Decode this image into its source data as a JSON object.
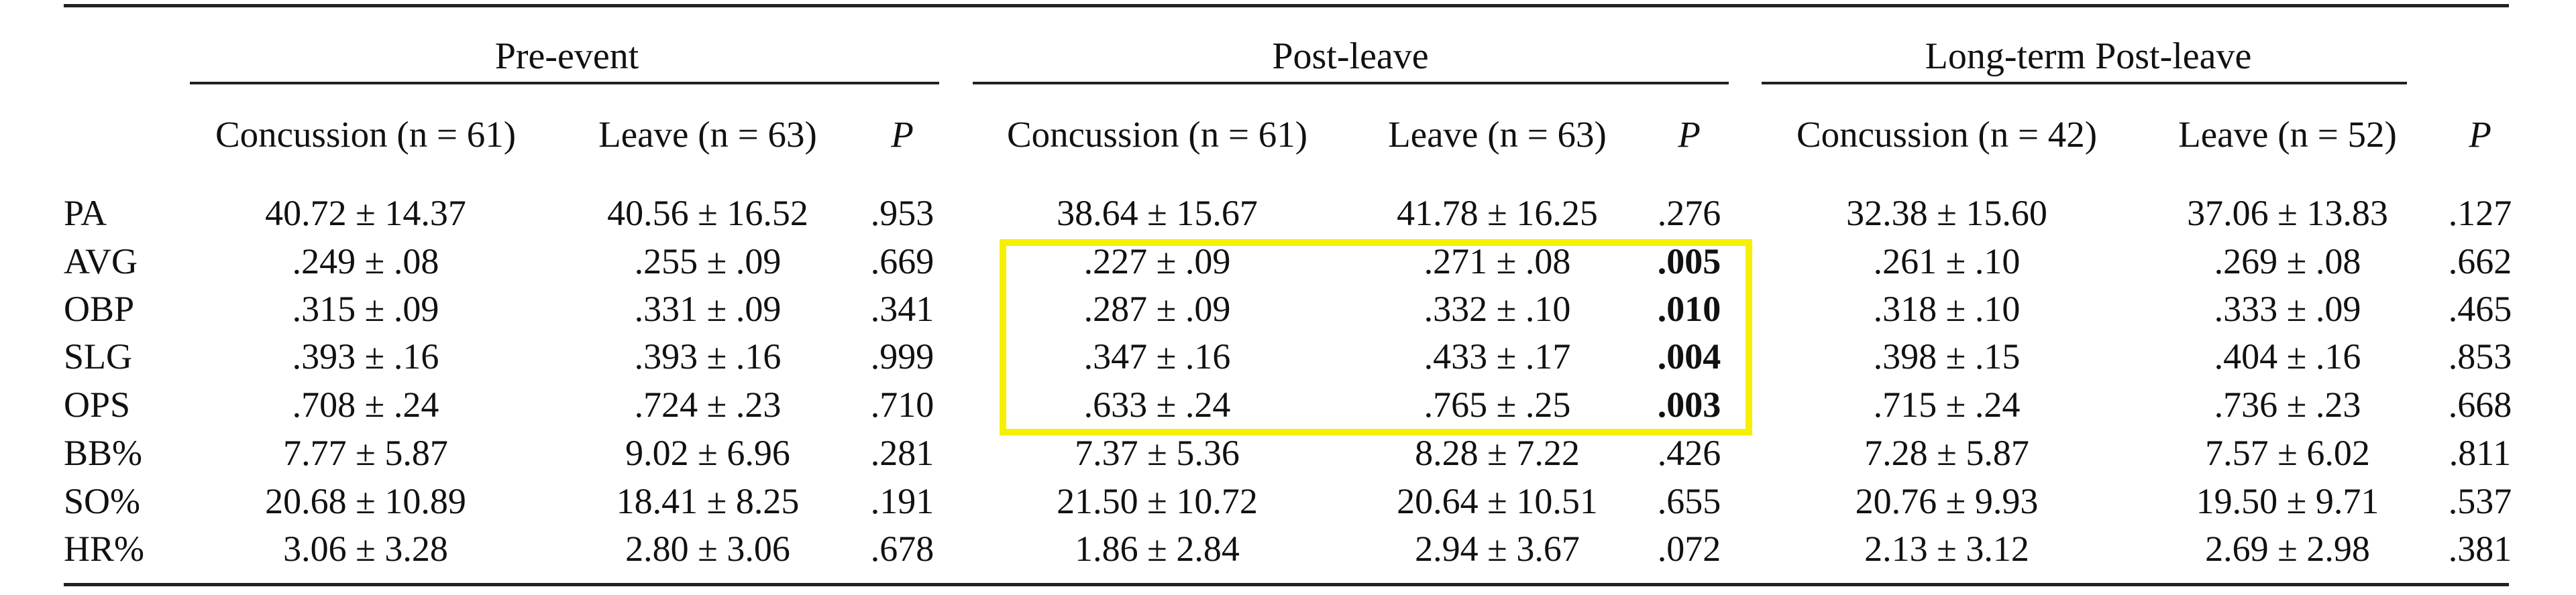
{
  "groups": [
    {
      "label": "Pre-event"
    },
    {
      "label": "Post-leave"
    },
    {
      "label": "Long-term Post-leave"
    }
  ],
  "column_headers": [
    "Concussion (n = 61)",
    "Leave (n = 63)",
    "P",
    "Concussion (n = 61)",
    "Leave (n = 63)",
    "P",
    "Concussion (n = 42)",
    "Leave (n = 52)",
    "P"
  ],
  "rows": [
    {
      "label": "PA",
      "values": [
        "40.72 ± 14.37",
        "40.56 ± 16.52",
        ".953",
        "38.64 ± 15.67",
        "41.78 ± 16.25",
        ".276",
        "32.38 ± 15.60",
        "37.06 ± 13.83",
        ".127"
      ]
    },
    {
      "label": "AVG",
      "values": [
        ".249 ± .08",
        ".255 ± .09",
        ".669",
        ".227 ± .09",
        ".271 ± .08",
        ".005",
        ".261 ± .10",
        ".269 ± .08",
        ".662"
      ]
    },
    {
      "label": "OBP",
      "values": [
        ".315 ± .09",
        ".331 ± .09",
        ".341",
        ".287 ± .09",
        ".332 ± .10",
        ".010",
        ".318 ± .10",
        ".333 ± .09",
        ".465"
      ]
    },
    {
      "label": "SLG",
      "values": [
        ".393 ± .16",
        ".393 ± .16",
        ".999",
        ".347 ± .16",
        ".433 ± .17",
        ".004",
        ".398 ± .15",
        ".404 ± .16",
        ".853"
      ]
    },
    {
      "label": "OPS",
      "values": [
        ".708 ± .24",
        ".724 ± .23",
        ".710",
        ".633 ± .24",
        ".765 ± .25",
        ".003",
        ".715 ± .24",
        ".736 ± .23",
        ".668"
      ]
    },
    {
      "label": "BB%",
      "values": [
        "7.77 ± 5.87",
        "9.02 ± 6.96",
        ".281",
        "7.37 ± 5.36",
        "8.28 ± 7.22",
        ".426",
        "7.28 ± 5.87",
        "7.57 ± 6.02",
        ".811"
      ]
    },
    {
      "label": "SO%",
      "values": [
        "20.68 ± 10.89",
        "18.41 ± 8.25",
        ".191",
        "21.50 ± 10.72",
        "20.64 ± 10.51",
        ".655",
        "20.76 ± 9.93",
        "19.50 ± 9.71",
        ".537"
      ]
    },
    {
      "label": "HR%",
      "values": [
        "3.06 ± 3.28",
        "2.80 ± 3.06",
        ".678",
        "1.86 ± 2.84",
        "2.94 ± 3.67",
        ".072",
        "2.13 ± 3.12",
        "2.69 ± 2.98",
        ".381"
      ]
    }
  ],
  "bold_cells": [
    [
      1,
      5
    ],
    [
      2,
      5
    ],
    [
      3,
      5
    ],
    [
      4,
      5
    ]
  ],
  "highlight": {
    "color": "#f7f000",
    "rows": [
      1,
      4
    ],
    "cols": [
      3,
      5
    ]
  }
}
